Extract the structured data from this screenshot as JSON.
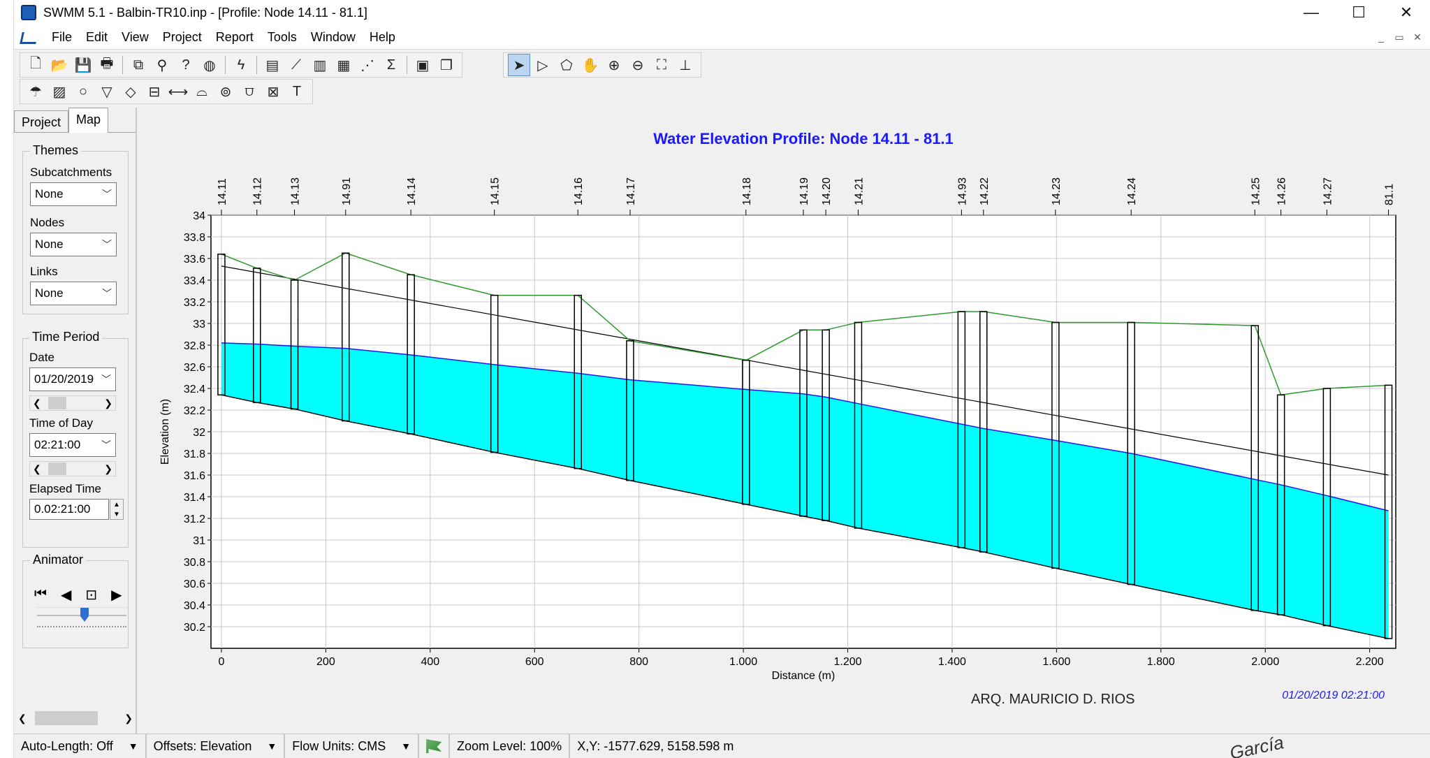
{
  "window": {
    "title": "SWMM 5.1 - Balbin-TR10.inp - [Profile: Node 14.11 - 81.1]",
    "minimize": "—",
    "maximize": "☐",
    "close": "✕"
  },
  "menu": [
    "File",
    "Edit",
    "View",
    "Project",
    "Report",
    "Tools",
    "Window",
    "Help"
  ],
  "mdi": {
    "min": "_",
    "restore": "▭",
    "close": "✕"
  },
  "left_panel": {
    "tabs": [
      "Project",
      "Map"
    ],
    "active_tab": "Map",
    "themes_label": "Themes",
    "subcatchments_label": "Subcatchments",
    "subcatchments_value": "None",
    "nodes_label": "Nodes",
    "nodes_value": "None",
    "links_label": "Links",
    "links_value": "None",
    "time_period_label": "Time Period",
    "date_label": "Date",
    "date_value": "01/20/2019",
    "time_of_day_label": "Time of Day",
    "time_of_day_value": "02:21:00",
    "elapsed_label": "Elapsed Time",
    "elapsed_value": "0.02:21:00",
    "animator_label": "Animator"
  },
  "status": {
    "auto_length": "Auto-Length: Off",
    "offsets": "Offsets: Elevation",
    "flow_units": "Flow Units: CMS",
    "zoom": "Zoom Level: 100%",
    "xy": "X,Y: -1577.629, 5158.598 m"
  },
  "signature_text": "ARQ. MAURICIO D. RIOS",
  "signature_text2": "García",
  "colors": {
    "water": "#00ffff",
    "ground": "#2e9a2e",
    "hgl": "#1a1aff",
    "title": "#1a1aff",
    "timestamp": "#1a1aff"
  },
  "chart_data": {
    "type": "line",
    "title": "Water Elevation Profile: Node 14.11 - 81.1",
    "xlabel": "Distance (m)",
    "ylabel": "Elevation (m)",
    "timestamp": "01/20/2019 02:21:00",
    "xlim": [
      -20,
      2250
    ],
    "ylim": [
      30.0,
      34.0
    ],
    "x_ticks": [
      0,
      200,
      400,
      600,
      800,
      1000,
      1200,
      1400,
      1600,
      1800,
      2000,
      2200
    ],
    "x_tick_labels": [
      "0",
      "200",
      "400",
      "600",
      "800",
      "1.000",
      "1.200",
      "1.400",
      "1.600",
      "1.800",
      "2.000",
      "2.200"
    ],
    "y_ticks": [
      30.2,
      30.4,
      30.6,
      30.8,
      31,
      31.2,
      31.4,
      31.6,
      31.8,
      32,
      32.2,
      32.4,
      32.6,
      32.8,
      33,
      33.2,
      33.4,
      33.6,
      33.8,
      34
    ],
    "nodes": [
      {
        "name": "14.11",
        "x": 0,
        "invert": 32.34,
        "ground": 33.64,
        "water": 32.82
      },
      {
        "name": "14.12",
        "x": 68,
        "invert": 32.27,
        "ground": 33.51,
        "water": 32.81
      },
      {
        "name": "14.13",
        "x": 140,
        "invert": 32.21,
        "ground": 33.4,
        "water": 32.79
      },
      {
        "name": "14.91",
        "x": 238,
        "invert": 32.1,
        "ground": 33.65,
        "water": 32.77
      },
      {
        "name": "14.14",
        "x": 363,
        "invert": 31.98,
        "ground": 33.45,
        "water": 32.71
      },
      {
        "name": "14.15",
        "x": 523,
        "invert": 31.81,
        "ground": 33.26,
        "water": 32.62
      },
      {
        "name": "14.16",
        "x": 683,
        "invert": 31.66,
        "ground": 33.26,
        "water": 32.54
      },
      {
        "name": "14.17",
        "x": 783,
        "invert": 31.55,
        "ground": 32.84,
        "water": 32.48
      },
      {
        "name": "14.18",
        "x": 1005,
        "invert": 31.33,
        "ground": 32.66,
        "water": 32.39
      },
      {
        "name": "14.19",
        "x": 1115,
        "invert": 31.22,
        "ground": 32.94,
        "water": 32.35
      },
      {
        "name": "14.20",
        "x": 1158,
        "invert": 31.18,
        "ground": 32.94,
        "water": 32.32
      },
      {
        "name": "14.21",
        "x": 1220,
        "invert": 31.11,
        "ground": 33.01,
        "water": 32.26
      },
      {
        "name": "14.93",
        "x": 1418,
        "invert": 30.93,
        "ground": 33.11,
        "water": 32.07
      },
      {
        "name": "14.22",
        "x": 1460,
        "invert": 30.89,
        "ground": 33.11,
        "water": 32.03
      },
      {
        "name": "14.23",
        "x": 1598,
        "invert": 30.74,
        "ground": 33.01,
        "water": 31.92
      },
      {
        "name": "14.24",
        "x": 1743,
        "invert": 30.59,
        "ground": 33.01,
        "water": 31.8
      },
      {
        "name": "14.25",
        "x": 1980,
        "invert": 30.35,
        "ground": 32.98,
        "water": 31.56
      },
      {
        "name": "14.26",
        "x": 2030,
        "invert": 30.31,
        "ground": 32.34,
        "water": 31.51
      },
      {
        "name": "14.27",
        "x": 2118,
        "invert": 30.21,
        "ground": 32.4,
        "water": 31.41
      },
      {
        "name": "81.1",
        "x": 2236,
        "invert": 30.09,
        "ground": 32.43,
        "water": 31.27
      }
    ],
    "crown_line": [
      [
        0,
        33.53
      ],
      [
        2236,
        31.6
      ]
    ]
  }
}
